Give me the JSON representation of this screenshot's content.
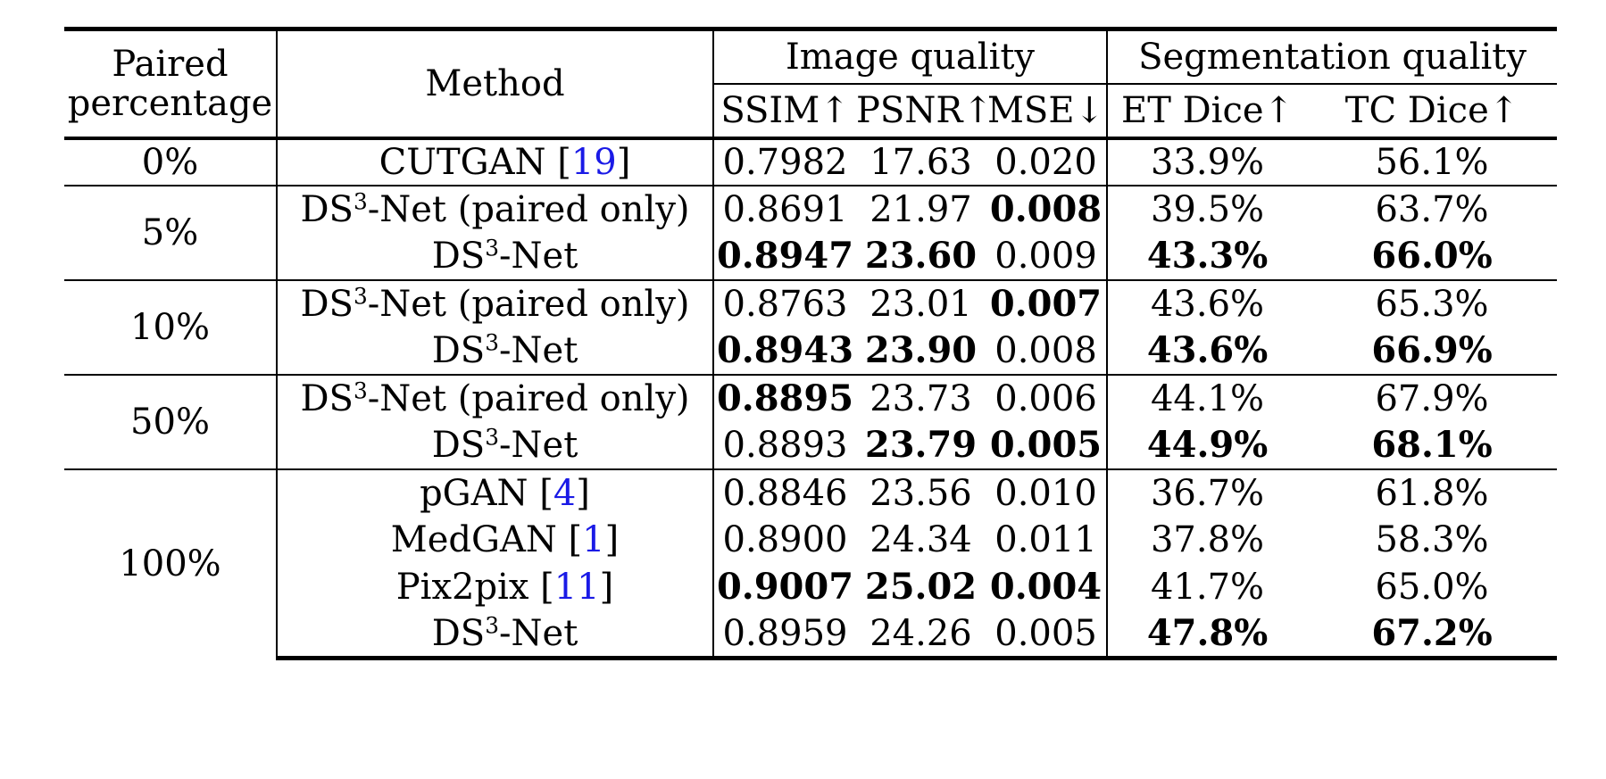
{
  "header": {
    "paired_col": [
      "Paired",
      "percentage"
    ],
    "method_col": "Method",
    "image_quality": "Image quality",
    "segmentation_quality": "Segmentation quality",
    "metrics": [
      "SSIM↑",
      "PSNR↑",
      "MSE↓",
      "ET Dice↑",
      "TC Dice↑"
    ]
  },
  "groups": [
    {
      "pct": "0%",
      "rows": [
        {
          "method": "CUTGAN [19]",
          "cite": "19",
          "values": [
            "0.7982",
            "17.63",
            "0.020",
            "33.9%",
            "56.1%"
          ],
          "bold": []
        }
      ]
    },
    {
      "pct": "5%",
      "rows": [
        {
          "method": "DS3-Net (paired only)",
          "values": [
            "0.8691",
            "21.97",
            "0.008",
            "39.5%",
            "63.7%"
          ],
          "bold": [
            2
          ]
        },
        {
          "method": "DS3-Net",
          "values": [
            "0.8947",
            "23.60",
            "0.009",
            "43.3%",
            "66.0%"
          ],
          "bold": [
            0,
            1,
            3,
            4
          ]
        }
      ]
    },
    {
      "pct": "10%",
      "rows": [
        {
          "method": "DS3-Net (paired only)",
          "values": [
            "0.8763",
            "23.01",
            "0.007",
            "43.6%",
            "65.3%"
          ],
          "bold": [
            2
          ]
        },
        {
          "method": "DS3-Net",
          "values": [
            "0.8943",
            "23.90",
            "0.008",
            "43.6%",
            "66.9%"
          ],
          "bold": [
            0,
            1,
            3,
            4
          ]
        }
      ]
    },
    {
      "pct": "50%",
      "rows": [
        {
          "method": "DS3-Net (paired only)",
          "values": [
            "0.8895",
            "23.73",
            "0.006",
            "44.1%",
            "67.9%"
          ],
          "bold": [
            0
          ]
        },
        {
          "method": "DS3-Net",
          "values": [
            "0.8893",
            "23.79",
            "0.005",
            "44.9%",
            "68.1%"
          ],
          "bold": [
            1,
            2,
            3,
            4
          ]
        }
      ]
    },
    {
      "pct": "100%",
      "rows": [
        {
          "method": "pGAN [4]",
          "cite": "4",
          "values": [
            "0.8846",
            "23.56",
            "0.010",
            "36.7%",
            "61.8%"
          ],
          "bold": []
        },
        {
          "method": "MedGAN [1]",
          "cite": "1",
          "values": [
            "0.8900",
            "24.34",
            "0.011",
            "37.8%",
            "58.3%"
          ],
          "bold": []
        },
        {
          "method": "Pix2pix [11]",
          "cite": "11",
          "values": [
            "0.9007",
            "25.02",
            "0.004",
            "41.7%",
            "65.0%"
          ],
          "bold": [
            0,
            1,
            2
          ]
        },
        {
          "method": "DS3-Net",
          "values": [
            "0.8959",
            "24.26",
            "0.005",
            "47.8%",
            "67.2%"
          ],
          "bold": [
            3,
            4
          ]
        }
      ]
    }
  ]
}
